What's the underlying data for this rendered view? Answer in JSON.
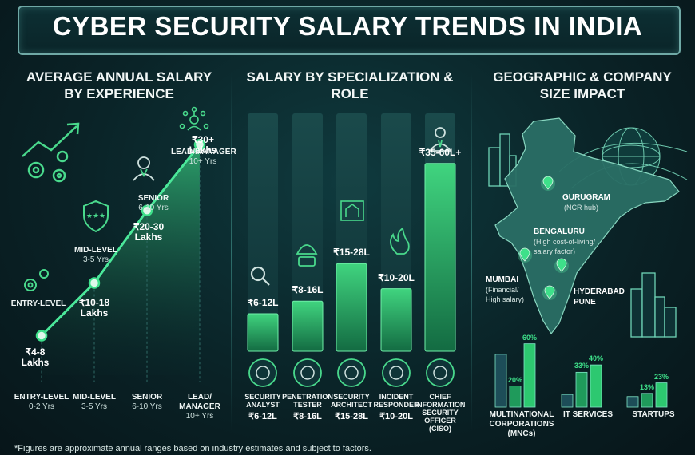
{
  "title": "CYBER SECURITY SALARY TRENDS IN INDIA",
  "footer": "*Figures are approximate annual ranges based on industry estimates and subject to factors.",
  "icons": [
    "growth-gears-icon",
    "gear-icon",
    "shield-stars-icon",
    "person-icon",
    "manager-network-icon",
    "magnifier-icon",
    "hacker-icon",
    "blueprint-icon",
    "fire-icon",
    "executive-icon",
    "skyline-icon",
    "globe-network-icon",
    "location-pin-icon"
  ],
  "colors": {
    "accent": "#3ee08a",
    "bar": "#1e8a55",
    "bar_bg": "#163a3e",
    "line": "#4be89a"
  },
  "chart_data": [
    {
      "type": "line",
      "title": "AVERAGE ANNUAL SALARY BY EXPERIENCE",
      "points": [
        {
          "level": "ENTRY-LEVEL",
          "years": "0-2 Yrs",
          "value_label": "₹4-8 Lakhs",
          "min": 4,
          "max": 8
        },
        {
          "level": "MID-LEVEL",
          "years": "3-5 Yrs",
          "value_label": "₹10-18 Lakhs",
          "min": 10,
          "max": 18
        },
        {
          "level": "SENIOR",
          "years": "6-10 Yrs",
          "value_label": "₹20-30 Lakhs",
          "min": 20,
          "max": 30
        },
        {
          "level": "LEAD/MANAGER",
          "years": "10+ Yrs",
          "value_label": "₹30+ Lakhs",
          "min": 30,
          "max": 40
        }
      ],
      "axis_labels": [
        {
          "level": "ENTRY-LEVEL",
          "years": "0-2 Yrs"
        },
        {
          "level": "MID-LEVEL",
          "years": "3-5 Yrs"
        },
        {
          "level": "SENIOR",
          "years": "6-10 Yrs"
        },
        {
          "level": "LEAD/\nMANAGER",
          "years": "10+ Yrs"
        }
      ],
      "point_titles": [
        {
          "level": "ENTRY-LEVEL",
          "years": ""
        },
        {
          "level": "MID-LEVEL",
          "years": "3-5 Yrs"
        },
        {
          "level": "SENIOR",
          "years": "6-10 Yrs"
        },
        {
          "level": "LEAD/MANAGER",
          "years": "10+ Yrs"
        }
      ],
      "value_lines": [
        [
          "₹4-8",
          "Lakhs"
        ],
        [
          "₹10-18",
          "Lakhs"
        ],
        [
          "₹20-30",
          "Lakhs"
        ],
        [
          "₹30+",
          "Lakhs"
        ]
      ],
      "ylim": [
        0,
        40
      ]
    },
    {
      "type": "bar",
      "title": "SALARY BY SPECIALIZATION & ROLE",
      "categories": [
        "SECURITY\nANALYST",
        "PENETRATION\nTESTER",
        "SECURITY\nARCHITECT",
        "INCIDENT\nRESPONDER",
        "CHIEF\nINFORMATION\nSECURITY\nOFFICER\n(CISO)"
      ],
      "value_labels": [
        "₹6-12L",
        "₹8-16L",
        "₹15-28L",
        "₹10-20L",
        "₹35-60L+"
      ],
      "values": [
        12,
        16,
        28,
        20,
        60
      ],
      "ylim": [
        0,
        76
      ]
    },
    {
      "type": "bar",
      "title": "GEOGRAPHIC & COMPANY SIZE IMPACT",
      "groups": [
        {
          "name": "MULTINATIONAL\nCORPORATIONS\n(MNCs)",
          "values": [
            50,
            20,
            60
          ],
          "labels": [
            "",
            "20%",
            "60%"
          ]
        },
        {
          "name": "IT SERVICES",
          "values": [
            12,
            33,
            40
          ],
          "labels": [
            "",
            "33%",
            "40%"
          ]
        },
        {
          "name": "STARTUPS",
          "values": [
            10,
            13,
            23
          ],
          "labels": [
            "",
            "13%",
            "23%"
          ]
        }
      ],
      "ylim": [
        0,
        62
      ]
    }
  ],
  "map": {
    "cities": [
      {
        "name": "GURUGRAM",
        "sub": "(NCR hub)"
      },
      {
        "name": "BENGALURU",
        "sub": "(High cost-of-living/\nsalary factor)"
      },
      {
        "name": "MUMBAI",
        "sub": "(Financial/\nHigh salary)"
      },
      {
        "name": "HYDERABAD",
        "sub": ""
      },
      {
        "name": "PUNE",
        "sub": ""
      }
    ]
  }
}
